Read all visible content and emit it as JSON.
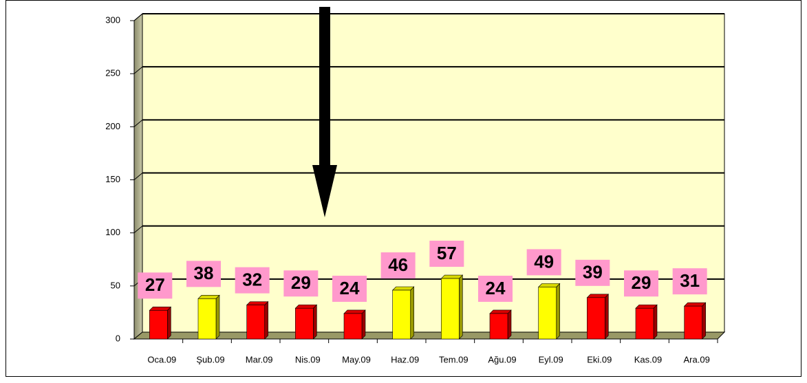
{
  "chart_data": {
    "type": "bar",
    "categories": [
      "Oca.09",
      "Şub.09",
      "Mar.09",
      "Nis.09",
      "May.09",
      "Haz.09",
      "Tem.09",
      "Ağu.09",
      "Eyl.09",
      "Eki.09",
      "Kas.09",
      "Ara.09"
    ],
    "values": [
      27,
      38,
      32,
      29,
      24,
      46,
      57,
      24,
      49,
      39,
      29,
      31
    ],
    "colors": [
      "#ff0000",
      "#ffff00",
      "#ff0000",
      "#ff0000",
      "#ff0000",
      "#ffff00",
      "#ffff00",
      "#ff0000",
      "#ffff00",
      "#ff0000",
      "#ff0000",
      "#ff0000"
    ],
    "ylim": [
      0,
      300
    ],
    "yticks": [
      0,
      50,
      100,
      150,
      200,
      250,
      300
    ],
    "grid": true
  }
}
